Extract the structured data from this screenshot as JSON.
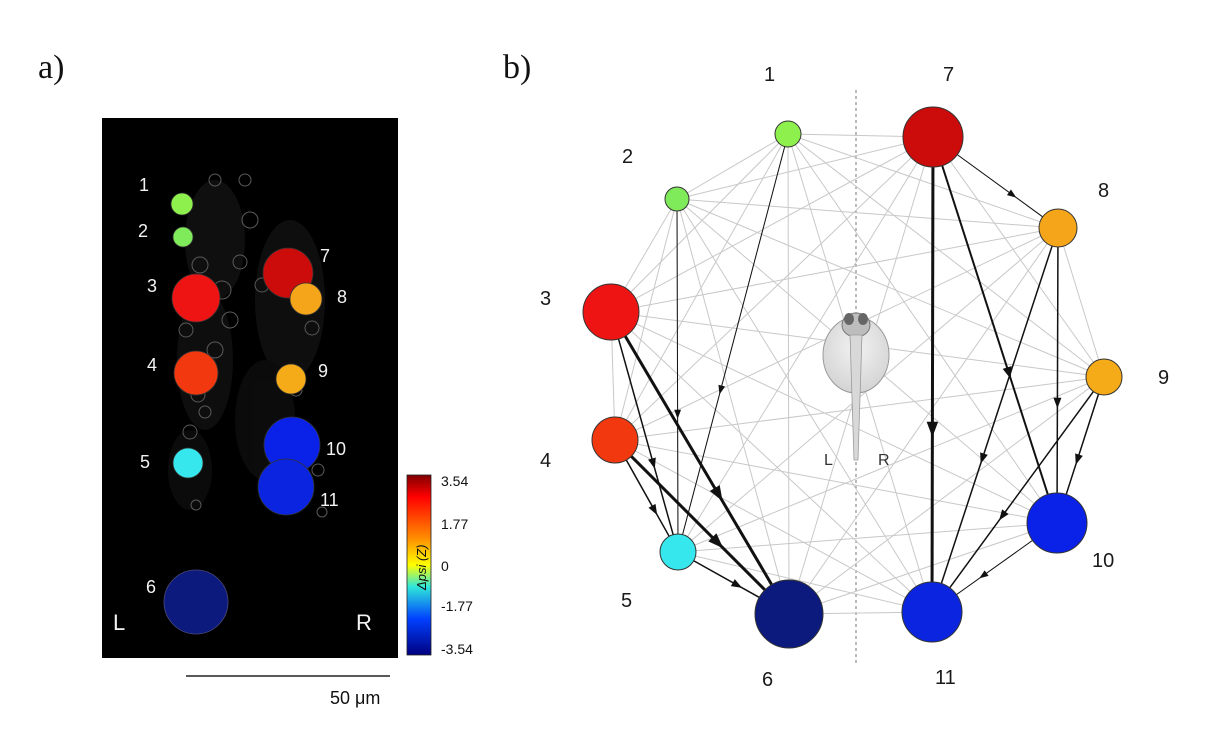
{
  "panel_a": {
    "label": "a)",
    "side_left": "L",
    "side_right": "R",
    "scale_bar_text": "50 μm",
    "colorbar": {
      "title": "Δpsi (Z)",
      "ticks": [
        "3.54",
        "1.77",
        "0",
        "-1.77",
        "-3.54"
      ]
    },
    "cells": [
      {
        "label": "1",
        "color": "#8ef04c"
      },
      {
        "label": "2",
        "color": "#7fea5a"
      },
      {
        "label": "3",
        "color": "#ee1414"
      },
      {
        "label": "4",
        "color": "#f2380f"
      },
      {
        "label": "5",
        "color": "#36e8ee"
      },
      {
        "label": "6",
        "color": "#0b1a7c"
      },
      {
        "label": "7",
        "color": "#cc0b0b"
      },
      {
        "label": "8",
        "color": "#f5a51a"
      },
      {
        "label": "9",
        "color": "#f5aa17"
      },
      {
        "label": "10",
        "color": "#0a22e8"
      },
      {
        "label": "11",
        "color": "#0a24e0"
      }
    ]
  },
  "panel_b": {
    "label": "b)",
    "midline_left": "L",
    "midline_right": "R",
    "nodes": [
      {
        "label": "1",
        "color": "#8ef04c"
      },
      {
        "label": "2",
        "color": "#7fea5a"
      },
      {
        "label": "3",
        "color": "#ee1414"
      },
      {
        "label": "4",
        "color": "#f2380f"
      },
      {
        "label": "5",
        "color": "#36e8ee"
      },
      {
        "label": "6",
        "color": "#0b1a7c"
      },
      {
        "label": "7",
        "color": "#cc0b0b"
      },
      {
        "label": "8",
        "color": "#f5a51a"
      },
      {
        "label": "9",
        "color": "#f5aa17"
      },
      {
        "label": "10",
        "color": "#0a22e8"
      },
      {
        "label": "11",
        "color": "#0a24e0"
      }
    ],
    "strong_edges": [
      {
        "from": "7",
        "to": "11",
        "weight": 3
      },
      {
        "from": "7",
        "to": "10",
        "weight": 2
      },
      {
        "from": "3",
        "to": "6",
        "weight": 3
      },
      {
        "from": "4",
        "to": "6",
        "weight": 3
      },
      {
        "from": "3",
        "to": "5",
        "weight": 1.5
      },
      {
        "from": "4",
        "to": "5",
        "weight": 1.5
      },
      {
        "from": "5",
        "to": "6",
        "weight": 1.5
      },
      {
        "from": "8",
        "to": "10",
        "weight": 1.5
      },
      {
        "from": "8",
        "to": "11",
        "weight": 1.5
      },
      {
        "from": "9",
        "to": "11",
        "weight": 1.5
      },
      {
        "from": "9",
        "to": "10",
        "weight": 1.5
      },
      {
        "from": "1",
        "to": "5",
        "weight": 1
      },
      {
        "from": "2",
        "to": "5",
        "weight": 1
      },
      {
        "from": "7",
        "to": "8",
        "weight": 1
      },
      {
        "from": "10",
        "to": "11",
        "weight": 1
      }
    ]
  }
}
